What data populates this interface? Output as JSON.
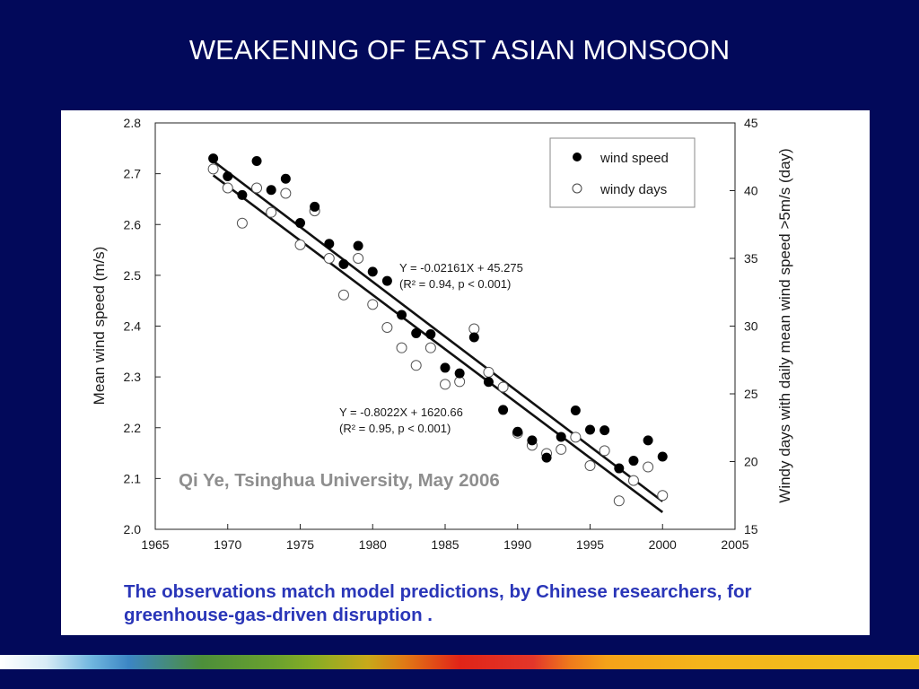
{
  "slide": {
    "title": "WEAKENING OF EAST ASIAN MONSOON",
    "caption": "The observations match model predictions, by Chinese researchers, for greenhouse-gas-driven disruption .",
    "watermark": "Qi Ye, Tsinghua University, May 2006",
    "colors": {
      "background": "#02095a",
      "title": "#ffffff",
      "caption": "#2a36b8",
      "watermark": "#8e8e8e"
    }
  },
  "chart_data": {
    "type": "scatter",
    "title": "",
    "xlabel": "",
    "ylabel_left": "Mean wind speed (m/s)",
    "ylabel_right": "Windy days with daily mean wind speed >5m/s (day)",
    "xlim": [
      1965,
      2005
    ],
    "ylim_left": [
      2.0,
      2.8
    ],
    "ylim_right": [
      15,
      45
    ],
    "x_ticks": [
      1965,
      1970,
      1975,
      1980,
      1985,
      1990,
      1995,
      2000,
      2005
    ],
    "y_left_ticks": [
      "2.0",
      "2.1",
      "2.2",
      "2.3",
      "2.4",
      "2.5",
      "2.6",
      "2.7",
      "2.8"
    ],
    "y_right_ticks": [
      15,
      20,
      25,
      30,
      35,
      40,
      45
    ],
    "grid": false,
    "legend_position": "top-right",
    "series": [
      {
        "name": "wind speed",
        "marker": "filled-circle",
        "axis": "left",
        "x": [
          1969,
          1970,
          1971,
          1972,
          1973,
          1974,
          1975,
          1976,
          1977,
          1978,
          1979,
          1980,
          1981,
          1982,
          1983,
          1984,
          1985,
          1986,
          1987,
          1988,
          1989,
          1990,
          1991,
          1992,
          1993,
          1994,
          1995,
          1996,
          1997,
          1998,
          1999,
          2000
        ],
        "y": [
          2.73,
          2.695,
          2.658,
          2.725,
          2.668,
          2.69,
          2.603,
          2.635,
          2.562,
          2.522,
          2.558,
          2.507,
          2.489,
          2.422,
          2.386,
          2.384,
          2.318,
          2.307,
          2.378,
          2.29,
          2.235,
          2.192,
          2.175,
          2.141,
          2.182,
          2.234,
          2.196,
          2.195,
          2.12,
          2.135,
          2.175,
          2.143
        ],
        "fit": {
          "equation": "Y = -0.02161X + 45.275",
          "stats": "(R² = 0.94, p < 0.001)",
          "x_range": [
            1969,
            2000
          ]
        }
      },
      {
        "name": "windy days",
        "marker": "open-circle",
        "axis": "right",
        "x": [
          1969,
          1970,
          1971,
          1972,
          1973,
          1974,
          1976,
          1975,
          1977,
          1978,
          1979,
          1980,
          1981,
          1982,
          1983,
          1984,
          1985,
          1986,
          1987,
          1988,
          1989,
          1990,
          1991,
          1992,
          1993,
          1994,
          1995,
          1996,
          1997,
          1998,
          1999,
          2000
        ],
        "y": [
          41.6,
          40.2,
          37.6,
          40.2,
          38.4,
          39.8,
          38.5,
          36.0,
          35.0,
          32.3,
          35.0,
          31.6,
          29.9,
          28.4,
          27.1,
          28.4,
          25.7,
          25.9,
          29.8,
          26.6,
          25.5,
          22.1,
          21.2,
          20.6,
          20.9,
          21.8,
          19.7,
          20.8,
          17.1,
          18.6,
          19.6,
          17.5
        ],
        "fit": {
          "equation": "Y = -0.8022X + 1620.66",
          "stats": "(R² = 0.95, p < 0.001)",
          "x_range": [
            1969,
            2000
          ]
        }
      }
    ]
  }
}
